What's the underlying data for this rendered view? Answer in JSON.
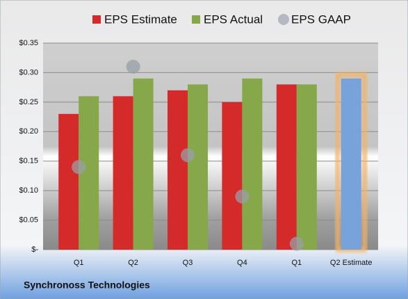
{
  "chart_data": {
    "type": "bar",
    "categories": [
      "Q1",
      "Q2",
      "Q3",
      "Q4",
      "Q1",
      "Q2 Estimate"
    ],
    "series": [
      {
        "name": "EPS Estimate",
        "color": "#d42a2a",
        "values": [
          0.23,
          0.26,
          0.27,
          0.25,
          0.28,
          0.29
        ]
      },
      {
        "name": "EPS Actual",
        "color": "#86a84a",
        "values": [
          0.26,
          0.29,
          0.28,
          0.29,
          0.28,
          null
        ]
      },
      {
        "name": "EPS GAAP",
        "color": "#b4b8c0",
        "marker": "circle",
        "values": [
          0.14,
          0.31,
          0.16,
          0.09,
          0.01,
          null
        ]
      }
    ],
    "highlight": {
      "category": 5,
      "color": "#77a3da",
      "glow": "#f4b266"
    },
    "ylim": [
      0,
      0.35
    ],
    "yticks": [
      {
        "value": 0,
        "label": "$-"
      },
      {
        "value": 0.05,
        "label": "$0.05"
      },
      {
        "value": 0.1,
        "label": "$0.10"
      },
      {
        "value": 0.15,
        "label": "$0.15"
      },
      {
        "value": 0.2,
        "label": "$0.20"
      },
      {
        "value": 0.25,
        "label": "$0.25"
      },
      {
        "value": 0.3,
        "label": "$0.30"
      },
      {
        "value": 0.35,
        "label": "$0.35"
      }
    ],
    "grid": true,
    "legend": "top",
    "footer": "Synchronoss Technologies"
  }
}
